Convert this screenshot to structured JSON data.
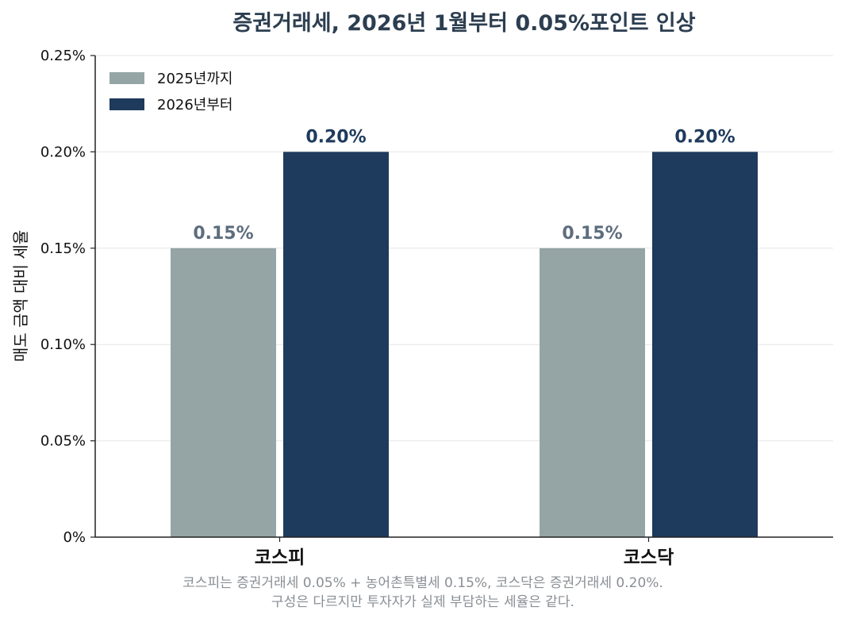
{
  "chart_data": {
    "type": "bar",
    "title": "증권거래세, 2026년 1월부터 0.05%포인트 인상",
    "ylabel": "매도 금액 대비 세율",
    "xlabel": "",
    "categories": [
      "코스피",
      "코스닥"
    ],
    "series": [
      {
        "name": "2025년까지",
        "values": [
          0.15,
          0.15
        ],
        "color": "#95a5a6",
        "label_color": "#5d6d7e",
        "labels": [
          "0.15%",
          "0.15%"
        ]
      },
      {
        "name": "2026년부터",
        "values": [
          0.2,
          0.2
        ],
        "color": "#1e3a5c",
        "label_color": "#1e3a5c",
        "labels": [
          "0.20%",
          "0.20%"
        ]
      }
    ],
    "ylim": [
      0,
      0.25
    ],
    "yticks": [
      0,
      0.05,
      0.1,
      0.15,
      0.2,
      0.25
    ],
    "ytick_labels": [
      "0%",
      "0.05%",
      "0.10%",
      "0.15%",
      "0.20%",
      "0.25%"
    ],
    "grid": "horizontal",
    "legend_position": "top-left",
    "note_lines": [
      "코스피는 증권거래세 0.05% + 농어촌특별세 0.15%, 코스닥은 증권거래세 0.20%.",
      "구성은 다르지만 투자자가 실제 부담하는 세율은 같다."
    ]
  }
}
